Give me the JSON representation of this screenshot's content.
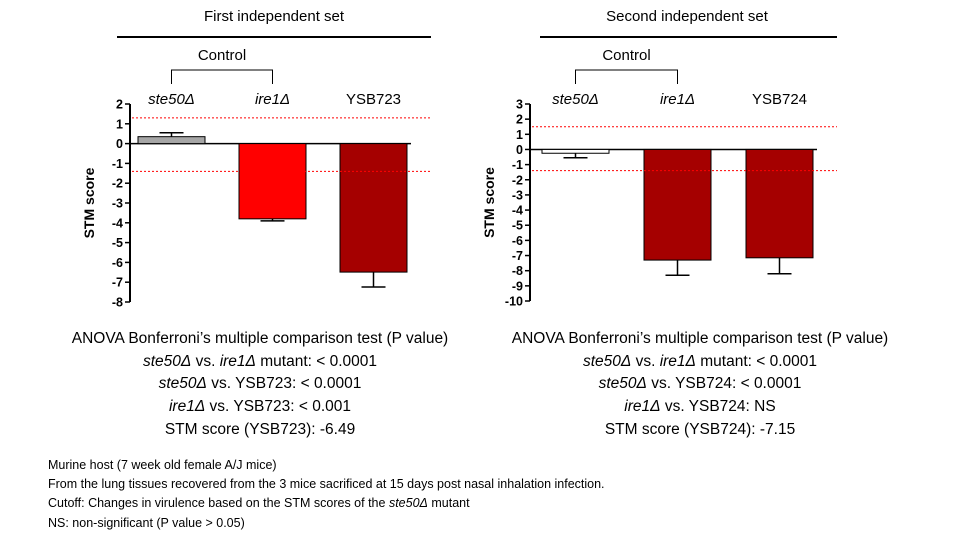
{
  "chart_data": [
    {
      "type": "bar",
      "title": "First independent set",
      "group_label": "Control",
      "categories": [
        "ste50Δ",
        "ire1Δ",
        "YSB723"
      ],
      "category_italic": [
        true,
        true,
        false
      ],
      "values": [
        0.35,
        -3.8,
        -6.49
      ],
      "errors": [
        0.2,
        0.1,
        0.75
      ],
      "bar_colors": [
        "#a6a6a6",
        "#ff0000",
        "#a50000"
      ],
      "ylabel": "STM score",
      "ylim": [
        -8,
        2
      ],
      "yticks": [
        2,
        1,
        0,
        -1,
        -2,
        -3,
        -4,
        -5,
        -6,
        -7,
        -8
      ],
      "cutoffs": [
        1.3,
        -1.4
      ],
      "cutoff_color": "#ff0000"
    },
    {
      "type": "bar",
      "title": "Second independent set",
      "group_label": "Control",
      "categories": [
        "ste50Δ",
        "ire1Δ",
        "YSB724"
      ],
      "category_italic": [
        true,
        true,
        false
      ],
      "values": [
        -0.25,
        -7.3,
        -7.15
      ],
      "errors": [
        0.3,
        1.0,
        1.05
      ],
      "bar_colors": [
        "#ffffff",
        "#a50000",
        "#a50000"
      ],
      "ylabel": "STM score",
      "ylim": [
        -10,
        3
      ],
      "yticks": [
        3,
        2,
        1,
        0,
        -1,
        -2,
        -3,
        -4,
        -5,
        -6,
        -7,
        -8,
        -9,
        -10
      ],
      "cutoffs": [
        1.5,
        -1.4
      ],
      "cutoff_color": "#ff0000"
    }
  ],
  "stats_left": {
    "heading": "ANOVA Bonferroni’s multiple comparison test (P value)",
    "l1_a": "ste50Δ",
    "l1_b": " vs. ",
    "l1_c": "ire1Δ",
    "l1_d": " mutant: < 0.0001",
    "l2_a": "ste50Δ",
    "l2_b": " vs. YSB723: < 0.0001",
    "l3_a": "ire1Δ",
    "l3_b": " vs. YSB723: < 0.001",
    "l4": "STM score (YSB723): -6.49"
  },
  "stats_right": {
    "heading": "ANOVA Bonferroni’s multiple comparison test (P value)",
    "l1_a": "ste50Δ",
    "l1_b": " vs. ",
    "l1_c": "ire1Δ",
    "l1_d": " mutant: < 0.0001",
    "l2_a": "ste50Δ",
    "l2_b": " vs. YSB724:  < 0.0001",
    "l3_a": "ire1Δ",
    "l3_b": " vs. YSB724: NS",
    "l4": "STM score (YSB724): -7.15"
  },
  "footnotes": {
    "line1": "Murine host (7 week old female A/J mice)",
    "line2": "From  the lung tissues recovered from the 3 mice sacrificed at 15 days post nasal inhalation infection.",
    "line3_a": "Cutoff: Changes in virulence based on the STM scores of the ",
    "line3_b": "ste50Δ",
    "line3_c": " mutant",
    "line4": "NS: non-significant (P value > 0.05)"
  }
}
